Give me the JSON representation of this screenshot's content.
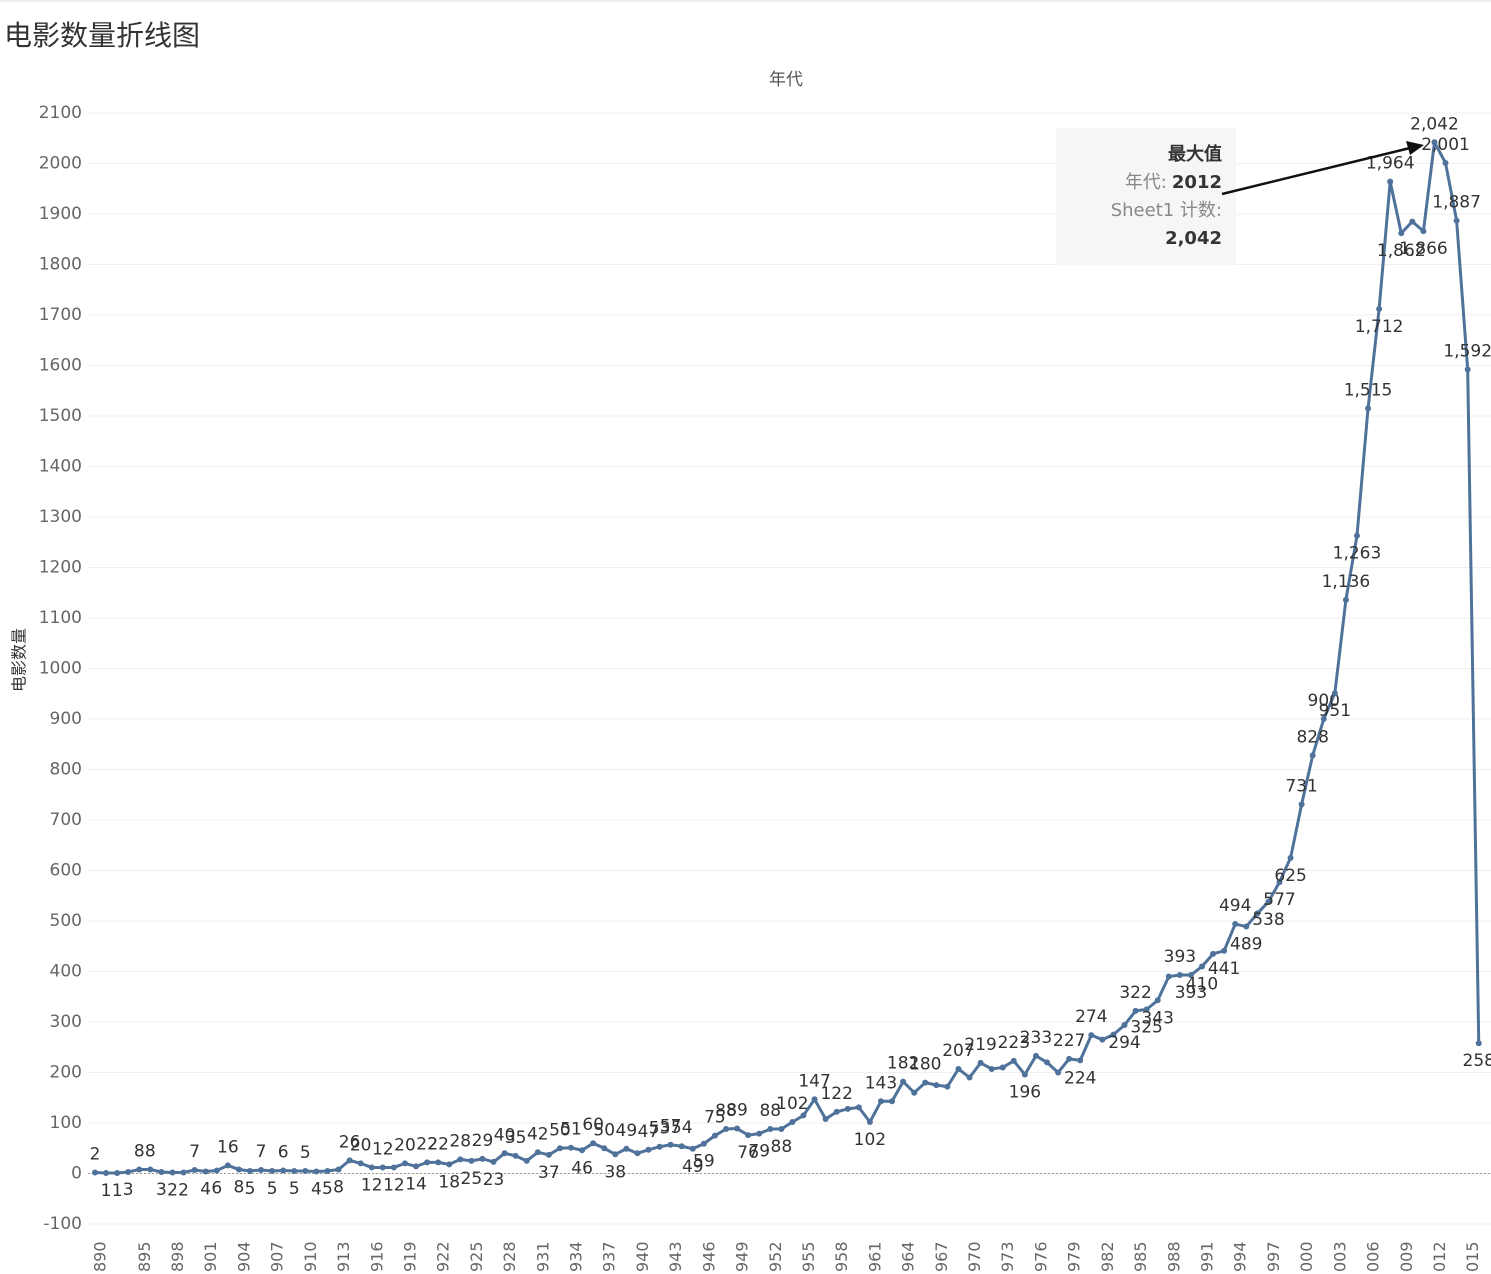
{
  "chart_data": {
    "type": "line",
    "title": "电影数量折线图",
    "x_label": "年代",
    "y_label": "电影数量",
    "categories": [
      "890",
      null,
      null,
      null,
      "895",
      null,
      null,
      "898",
      null,
      null,
      "901",
      null,
      null,
      "904",
      null,
      null,
      "907",
      null,
      null,
      "910",
      null,
      null,
      "913",
      null,
      null,
      "916",
      null,
      null,
      "919",
      null,
      null,
      "922",
      null,
      null,
      "925",
      null,
      null,
      "928",
      null,
      null,
      "931",
      null,
      null,
      "934",
      null,
      null,
      "937",
      null,
      null,
      "940",
      null,
      null,
      "943",
      null,
      null,
      "946",
      null,
      null,
      "949",
      null,
      null,
      "952",
      null,
      null,
      "955",
      null,
      null,
      "958",
      null,
      null,
      "961",
      null,
      null,
      "964",
      null,
      null,
      "967",
      null,
      null,
      "970",
      null,
      null,
      "973",
      null,
      null,
      "976",
      null,
      null,
      "979",
      null,
      null,
      "982",
      null,
      null,
      "985",
      null,
      null,
      "988",
      null,
      null,
      "991",
      null,
      null,
      "994",
      null,
      null,
      "997",
      null,
      null,
      "000",
      null,
      null,
      "003",
      null,
      null,
      "006",
      null,
      null,
      "009",
      null,
      null,
      "012",
      null,
      null,
      "015",
      null
    ],
    "values": [
      2,
      1,
      1,
      3,
      8,
      8,
      3,
      2,
      2,
      7,
      4,
      6,
      16,
      8,
      5,
      7,
      5,
      6,
      5,
      5,
      4,
      5,
      8,
      26,
      20,
      12,
      12,
      12,
      20,
      14,
      22,
      22,
      18,
      28,
      25,
      29,
      23,
      40,
      35,
      25,
      42,
      37,
      50,
      51,
      46,
      60,
      50,
      38,
      49,
      40,
      47,
      53,
      57,
      54,
      49,
      59,
      75,
      88,
      89,
      76,
      79,
      88,
      88,
      102,
      115,
      147,
      108,
      122,
      128,
      131,
      102,
      143,
      143,
      182,
      160,
      180,
      175,
      172,
      207,
      190,
      219,
      207,
      210,
      223,
      196,
      233,
      220,
      200,
      227,
      224,
      274,
      265,
      275,
      294,
      322,
      325,
      343,
      390,
      393,
      393,
      410,
      435,
      441,
      494,
      489,
      515,
      538,
      577,
      625,
      731,
      828,
      900,
      951,
      1136,
      1263,
      1515,
      1712,
      1964,
      1862,
      1885,
      1866,
      2042,
      2001,
      1887,
      1592,
      258
    ],
    "value_labels": [
      "2",
      "1",
      "1",
      "3",
      "8",
      "8",
      "3",
      "2",
      "2",
      "7",
      "4",
      "6",
      "16",
      "8",
      "5",
      "7",
      "5",
      "6",
      "5",
      "5",
      "4",
      "5",
      "8",
      "26",
      "20",
      "12",
      "12",
      "12",
      "20",
      "14",
      "22",
      "22",
      "18",
      "28",
      "25",
      "29",
      "23",
      "40",
      "35",
      null,
      "42",
      "37",
      "50",
      "51",
      "46",
      "60",
      "50",
      "38",
      "49",
      null,
      "47",
      "53",
      "57",
      "54",
      "49",
      "59",
      "75",
      "88",
      "89",
      "76",
      "79",
      "88",
      "88",
      "102",
      null,
      "147",
      null,
      "122",
      null,
      null,
      "102",
      "143",
      null,
      "182",
      null,
      "180",
      null,
      null,
      "207",
      null,
      "219",
      null,
      null,
      "223",
      "196",
      "233",
      null,
      null,
      "227",
      "224",
      "274",
      null,
      null,
      "294",
      "322",
      "325",
      "343",
      null,
      "393",
      "393",
      "410",
      null,
      "441",
      "494",
      "489",
      null,
      "538",
      "577",
      "625",
      "731",
      "828",
      "900",
      "951",
      "1,136",
      "1,263",
      "1,515",
      "1,712",
      "1,964",
      "1,862",
      null,
      "1,866",
      "2,042",
      "2,001",
      "1,887",
      "1,592",
      "258"
    ],
    "color": "#4f729b",
    "ylim": [
      -100,
      2100
    ],
    "yticks": [
      -100,
      0,
      100,
      200,
      300,
      400,
      500,
      600,
      700,
      800,
      900,
      1000,
      1100,
      1200,
      1300,
      1400,
      1500,
      1600,
      1700,
      1800,
      1900,
      2000,
      2100
    ],
    "grid": true,
    "annotation": {
      "title": "最大值",
      "year_label": "年代:",
      "year": "2012",
      "count_label": "Sheet1 计数:",
      "count": "2,042"
    }
  }
}
